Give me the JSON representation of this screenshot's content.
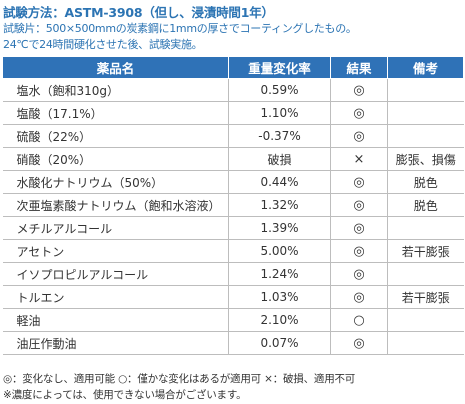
{
  "header": {
    "title": "試験方法：ASTM-3908（但し、浸漬時間1年）",
    "line1": "試験片：500×500mmの炭素鋼に1mmの厚さでコーティングしたもの。",
    "line2": "24℃で24時間硬化させた後、試験実施。"
  },
  "table": {
    "columns": [
      "薬品名",
      "重量変化率",
      "結果",
      "備考"
    ],
    "rows": [
      {
        "name": "塩水（飽和310g）",
        "rate": "0.59%",
        "result": "◎",
        "note": ""
      },
      {
        "name": "塩酸（17.1%）",
        "rate": "1.10%",
        "result": "◎",
        "note": ""
      },
      {
        "name": "硫酸（22%）",
        "rate": "-0.37%",
        "result": "◎",
        "note": ""
      },
      {
        "name": "硝酸（20%）",
        "rate": "破損",
        "result": "×",
        "note": "膨張、損傷"
      },
      {
        "name": "水酸化ナトリウム（50%）",
        "rate": "0.44%",
        "result": "◎",
        "note": "脱色"
      },
      {
        "name": "次亜塩素酸ナトリウム（飽和水溶液）",
        "rate": "1.32%",
        "result": "◎",
        "note": "脱色"
      },
      {
        "name": "メチルアルコール",
        "rate": "1.39%",
        "result": "◎",
        "note": ""
      },
      {
        "name": "アセトン",
        "rate": "5.00%",
        "result": "◎",
        "note": "若干膨張"
      },
      {
        "name": "イソプロピルアルコール",
        "rate": "1.24%",
        "result": "◎",
        "note": ""
      },
      {
        "name": "トルエン",
        "rate": "1.03%",
        "result": "◎",
        "note": "若干膨張"
      },
      {
        "name": "軽油",
        "rate": "2.10%",
        "result": "○",
        "note": ""
      },
      {
        "name": "油圧作動油",
        "rate": "0.07%",
        "result": "◎",
        "note": ""
      }
    ]
  },
  "footer": {
    "legend": "◎：変化なし、適用可能 ○：僅かな変化はあるが適用可 ×：破損、適用不可",
    "note": "※濃度によっては、使用できない場合がございます。"
  },
  "colors": {
    "header_bg": "#2f72b7",
    "title_text": "#2c74b3"
  }
}
